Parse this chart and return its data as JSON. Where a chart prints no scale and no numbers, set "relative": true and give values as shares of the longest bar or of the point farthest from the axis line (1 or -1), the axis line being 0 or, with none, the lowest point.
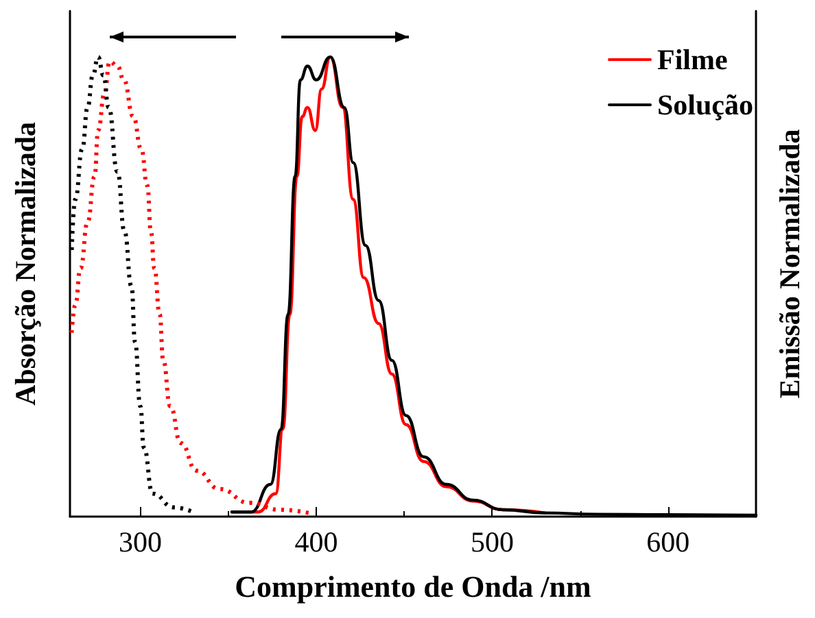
{
  "chart_data": {
    "type": "line",
    "xlabel": "Comprimento de Onda /nm",
    "ylabel": "Absorção Normalizada",
    "y2label": "Emissão Normalizada",
    "relative": true,
    "xlim": [
      260,
      650
    ],
    "xticks": [
      300,
      400,
      500,
      600
    ],
    "legend": "top right",
    "marker": "none",
    "grid": false,
    "series": [
      {
        "name": "Filme",
        "color": "#ff0000",
        "line_style": "solid",
        "x": [
          352,
          367,
          377,
          381,
          385,
          389,
          392,
          395,
          399.5,
          403,
          408,
          415,
          421,
          427,
          435.5,
          443,
          451,
          461,
          474,
          489,
          506,
          530
        ],
        "values": [
          0.01,
          0.01,
          0.05,
          0.19,
          0.44,
          0.74,
          0.87,
          0.89,
          0.84,
          0.93,
          1.0,
          0.89,
          0.69,
          0.52,
          0.42,
          0.31,
          0.2,
          0.12,
          0.065,
          0.034,
          0.015,
          0.008
        ]
      },
      {
        "name": "Solução",
        "color": "#000000",
        "line_style": "solid",
        "x": [
          352,
          363,
          374,
          380,
          384,
          388,
          391,
          395,
          400,
          408,
          416,
          421,
          428,
          435.5,
          443,
          451,
          461,
          474,
          489,
          506,
          530,
          560,
          600,
          650
        ],
        "values": [
          0.01,
          0.01,
          0.07,
          0.19,
          0.44,
          0.74,
          0.95,
          0.98,
          0.95,
          1.0,
          0.89,
          0.77,
          0.59,
          0.47,
          0.34,
          0.22,
          0.13,
          0.07,
          0.036,
          0.015,
          0.008,
          0.005,
          0.004,
          0.003
        ]
      },
      {
        "color": "#ff0000",
        "line_style": "dotted",
        "x": [
          261,
          263,
          266,
          270,
          274,
          276,
          279.6,
          282.6,
          287,
          290.6,
          296,
          300.5,
          304,
          306,
          308,
          311,
          313,
          317,
          323,
          332,
          345,
          362,
          379,
          398
        ],
        "values": [
          0.4,
          0.46,
          0.54,
          0.64,
          0.74,
          0.84,
          0.92,
          0.99,
          0.98,
          0.95,
          0.87,
          0.8,
          0.72,
          0.62,
          0.54,
          0.44,
          0.34,
          0.24,
          0.16,
          0.1,
          0.06,
          0.03,
          0.015,
          0.006
        ]
      },
      {
        "color": "#000000",
        "line_style": "dotted",
        "x": [
          261,
          263,
          267,
          270,
          273,
          276,
          279,
          282,
          287,
          291,
          295,
          297,
          300,
          302,
          307,
          319,
          330
        ],
        "values": [
          0.58,
          0.69,
          0.8,
          0.89,
          0.96,
          1.0,
          0.96,
          0.89,
          0.75,
          0.62,
          0.5,
          0.38,
          0.24,
          0.15,
          0.05,
          0.02,
          0.01
        ]
      }
    ]
  }
}
